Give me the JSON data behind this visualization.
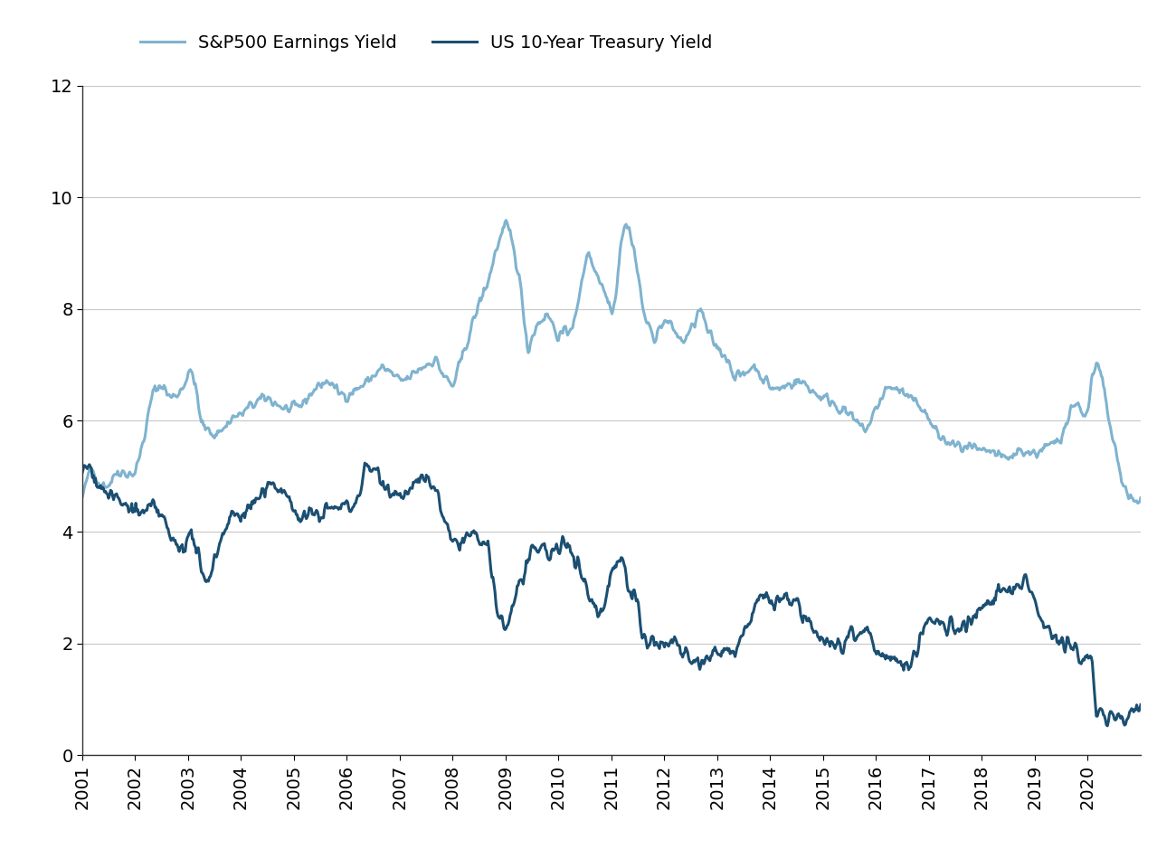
{
  "legend_entries": [
    "S&P500 Earnings Yield",
    "US 10-Year Treasury Yield"
  ],
  "sp500_color": "#7fb3cf",
  "treasury_color": "#1b4f72",
  "background_color": "#ffffff",
  "grid_color": "#c8c8c8",
  "ylim": [
    0,
    12
  ],
  "yticks": [
    0,
    2,
    4,
    6,
    8,
    10,
    12
  ],
  "xtick_labels": [
    "2001",
    "2002",
    "2003",
    "2004",
    "2005",
    "2006",
    "2007",
    "2008",
    "2009",
    "2010",
    "2011",
    "2012",
    "2013",
    "2014",
    "2015",
    "2016",
    "2017",
    "2018",
    "2019",
    "2020"
  ],
  "xtick_positions": [
    2001,
    2002,
    2003,
    2004,
    2005,
    2006,
    2007,
    2008,
    2009,
    2010,
    2011,
    2012,
    2013,
    2014,
    2015,
    2016,
    2017,
    2018,
    2019,
    2020
  ],
  "line_width": 2.2
}
